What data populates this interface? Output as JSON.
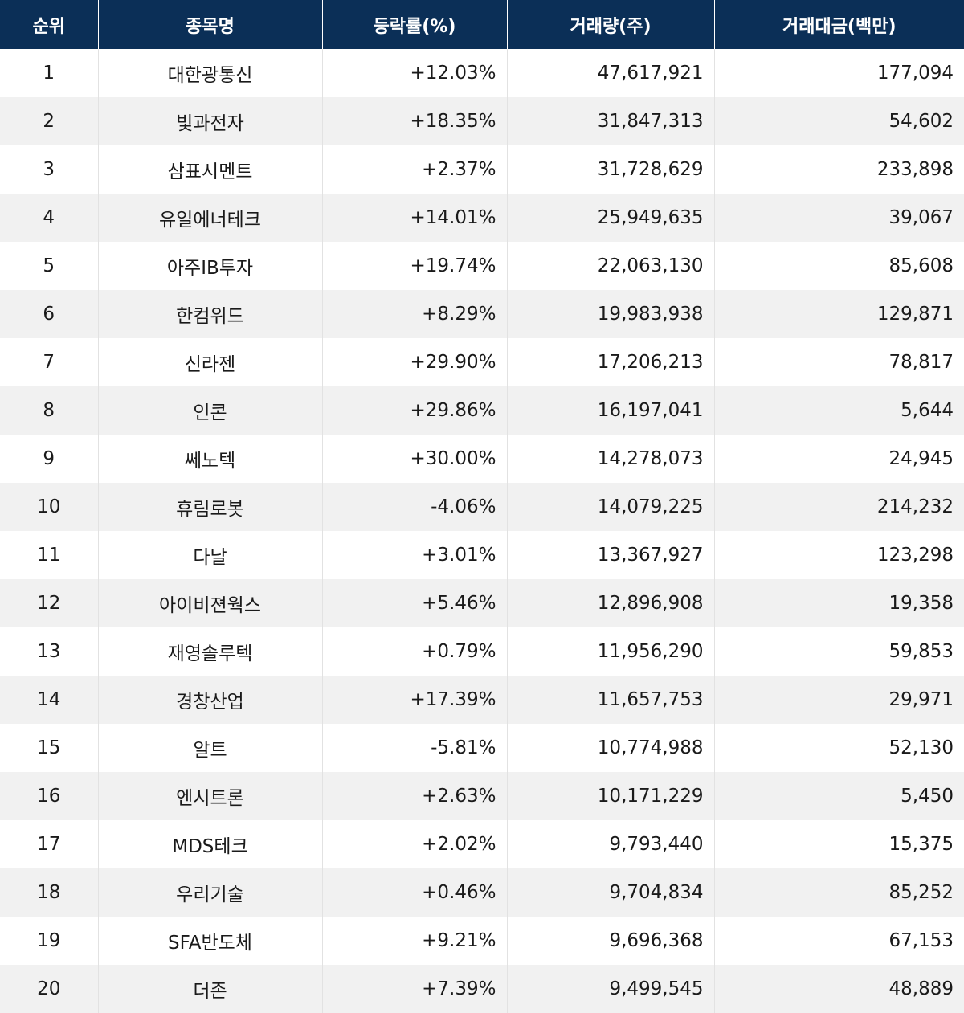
{
  "table": {
    "headers": [
      "순위",
      "종목명",
      "등락률(%)",
      "거래량(주)",
      "거래대금(백만)"
    ],
    "rows": [
      {
        "rank": "1",
        "name": "대한광통신",
        "change": "+12.03%",
        "volume": "47,617,921",
        "amount": "177,094"
      },
      {
        "rank": "2",
        "name": "빛과전자",
        "change": "+18.35%",
        "volume": "31,847,313",
        "amount": "54,602"
      },
      {
        "rank": "3",
        "name": "삼표시멘트",
        "change": "+2.37%",
        "volume": "31,728,629",
        "amount": "233,898"
      },
      {
        "rank": "4",
        "name": "유일에너테크",
        "change": "+14.01%",
        "volume": "25,949,635",
        "amount": "39,067"
      },
      {
        "rank": "5",
        "name": "아주IB투자",
        "change": "+19.74%",
        "volume": "22,063,130",
        "amount": "85,608"
      },
      {
        "rank": "6",
        "name": "한컴위드",
        "change": "+8.29%",
        "volume": "19,983,938",
        "amount": "129,871"
      },
      {
        "rank": "7",
        "name": "신라젠",
        "change": "+29.90%",
        "volume": "17,206,213",
        "amount": "78,817"
      },
      {
        "rank": "8",
        "name": "인콘",
        "change": "+29.86%",
        "volume": "16,197,041",
        "amount": "5,644"
      },
      {
        "rank": "9",
        "name": "쎄노텍",
        "change": "+30.00%",
        "volume": "14,278,073",
        "amount": "24,945"
      },
      {
        "rank": "10",
        "name": "휴림로봇",
        "change": "-4.06%",
        "volume": "14,079,225",
        "amount": "214,232"
      },
      {
        "rank": "11",
        "name": "다날",
        "change": "+3.01%",
        "volume": "13,367,927",
        "amount": "123,298"
      },
      {
        "rank": "12",
        "name": "아이비젼웍스",
        "change": "+5.46%",
        "volume": "12,896,908",
        "amount": "19,358"
      },
      {
        "rank": "13",
        "name": "재영솔루텍",
        "change": "+0.79%",
        "volume": "11,956,290",
        "amount": "59,853"
      },
      {
        "rank": "14",
        "name": "경창산업",
        "change": "+17.39%",
        "volume": "11,657,753",
        "amount": "29,971"
      },
      {
        "rank": "15",
        "name": "알트",
        "change": "-5.81%",
        "volume": "10,774,988",
        "amount": "52,130"
      },
      {
        "rank": "16",
        "name": "엔시트론",
        "change": "+2.63%",
        "volume": "10,171,229",
        "amount": "5,450"
      },
      {
        "rank": "17",
        "name": "MDS테크",
        "change": "+2.02%",
        "volume": "9,793,440",
        "amount": "15,375"
      },
      {
        "rank": "18",
        "name": "우리기술",
        "change": "+0.46%",
        "volume": "9,704,834",
        "amount": "85,252"
      },
      {
        "rank": "19",
        "name": "SFA반도체",
        "change": "+9.21%",
        "volume": "9,696,368",
        "amount": "67,153"
      },
      {
        "rank": "20",
        "name": "더존",
        "change": "+7.39%",
        "volume": "9,499,545",
        "amount": "48,889"
      }
    ]
  },
  "colors": {
    "header_bg": "#0b2f57",
    "header_text": "#ffffff",
    "row_alt_bg": "#f1f1f1",
    "row_bg": "#ffffff",
    "text": "#1a1a1a"
  }
}
